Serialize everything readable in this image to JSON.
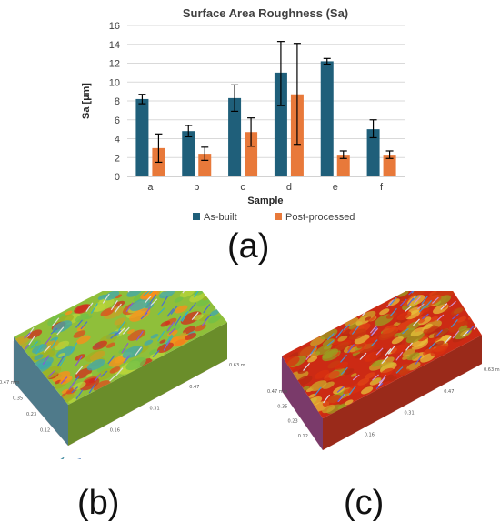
{
  "chart_data": {
    "type": "bar",
    "title": "Surface Area Roughness (Sa)",
    "xlabel": "Sample",
    "ylabel": "Sa [µm]",
    "categories": [
      "a",
      "b",
      "c",
      "d",
      "e",
      "f"
    ],
    "ylim": [
      0,
      16
    ],
    "yticks": [
      "0",
      "2",
      "4",
      "6",
      "8",
      "10",
      "12",
      "14",
      "16"
    ],
    "grid": true,
    "legend_position": "bottom",
    "series": [
      {
        "name": "As-built",
        "color": "#1f5f7a",
        "values": [
          8.2,
          4.8,
          8.3,
          11.0,
          12.2,
          5.0
        ],
        "err_low": [
          7.7,
          4.2,
          6.9,
          7.5,
          11.9,
          4.1
        ],
        "err_high": [
          8.7,
          5.4,
          9.7,
          14.3,
          12.5,
          6.0
        ]
      },
      {
        "name": "Post-processed",
        "color": "#e8793a",
        "values": [
          3.0,
          2.4,
          4.7,
          8.7,
          2.3,
          2.3
        ],
        "err_low": [
          1.5,
          1.7,
          3.2,
          3.4,
          1.9,
          1.9
        ],
        "err_high": [
          4.5,
          3.1,
          6.2,
          14.1,
          2.7,
          2.7
        ]
      }
    ]
  },
  "panels": {
    "a": "(a)",
    "b": "(b)",
    "c": "(c)"
  },
  "surface_b": {
    "axis_x": [
      "0.16",
      "0.31",
      "0.47",
      "0.63 mm"
    ],
    "axis_y": [
      "0.12",
      "0.23",
      "0.35",
      "0.47 mm"
    ]
  },
  "surface_c": {
    "axis_x": [
      "0.16",
      "0.31",
      "0.47",
      "0.63 mm"
    ],
    "axis_y": [
      "0.12",
      "0.23",
      "0.35",
      "0.47 mm"
    ]
  }
}
